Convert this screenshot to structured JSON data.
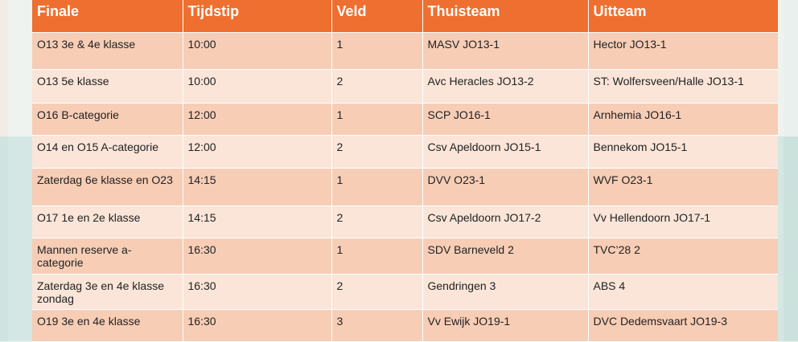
{
  "table": {
    "headers": [
      "Finale",
      "Tijdstip",
      "Veld",
      "Thuisteam",
      "Uitteam"
    ],
    "rows": [
      {
        "finale": "O13 3e & 4e klasse",
        "tijdstip": "10:00",
        "veld": "1",
        "thuisteam": "MASV JO13-1",
        "uitteam": "Hector JO13-1"
      },
      {
        "finale": "O13 5e klasse",
        "tijdstip": "10:00",
        "veld": "2",
        "thuisteam": "Avc Heracles JO13-2",
        "uitteam": "ST: Wolfersveen/Halle JO13-1"
      },
      {
        "finale": "O16 B-categorie",
        "tijdstip": "12:00",
        "veld": "1",
        "thuisteam": "SCP JO16-1",
        "uitteam": "Arnhemia JO16-1"
      },
      {
        "finale": "O14 en O15 A-categorie",
        "tijdstip": "12:00",
        "veld": "2",
        "thuisteam": "Csv Apeldoorn JO15-1",
        "uitteam": "Bennekom JO15-1"
      },
      {
        "finale": "Zaterdag 6e klasse en O23",
        "tijdstip": "14:15",
        "veld": "1",
        "thuisteam": "DVV O23-1",
        "uitteam": "WVF O23-1"
      },
      {
        "finale": "O17 1e en 2e klasse",
        "tijdstip": "14:15",
        "veld": "2",
        "thuisteam": "Csv Apeldoorn JO17-2",
        "uitteam": "Vv Hellendoorn JO17-1"
      },
      {
        "finale": "Mannen reserve a-categorie",
        "tijdstip": "16:30",
        "veld": "1",
        "thuisteam": "SDV Barneveld 2",
        "uitteam": "TVC’28 2"
      },
      {
        "finale": "Zaterdag 3e en 4e klasse zondag",
        "tijdstip": "16:30",
        "veld": "2",
        "thuisteam": "Gendringen 3",
        "uitteam": "ABS 4"
      },
      {
        "finale": "O19 3e en 4e klasse",
        "tijdstip": "16:30",
        "veld": "3",
        "thuisteam": "Vv Ewijk JO19-1",
        "uitteam": "DVC Dedemsvaart JO19-3"
      }
    ]
  },
  "colors": {
    "header": "#ee6f2f",
    "row_odd": "#f7cdb6",
    "row_even": "#fae5d8",
    "header_text": "#ffffff",
    "body_text": "#222222"
  }
}
